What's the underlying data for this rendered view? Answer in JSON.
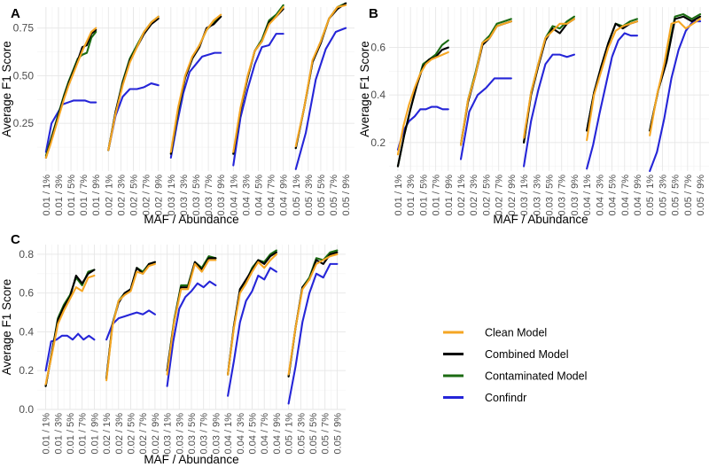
{
  "x_tick_labels": [
    "0.01 / 1%",
    "0.01 / 3%",
    "0.01 / 5%",
    "0.01 / 7%",
    "0.01 / 9%",
    "0.02 / 1%",
    "0.02 / 3%",
    "0.02 / 5%",
    "0.02 / 7%",
    "0.02 / 9%",
    "0.03 / 1%",
    "0.03 / 3%",
    "0.03 / 5%",
    "0.03 / 7%",
    "0.03 / 9%",
    "0.04 / 1%",
    "0.04 / 3%",
    "0.04 / 5%",
    "0.04 / 7%",
    "0.04 / 9%",
    "0.05 / 1%",
    "0.05 / 3%",
    "0.05 / 5%",
    "0.05 / 7%",
    "0.05 / 9%"
  ],
  "legend": [
    {
      "name": "Clean Model",
      "color": "#F5A623"
    },
    {
      "name": "Combined Model",
      "color": "#000000"
    },
    {
      "name": "Contaminated Model",
      "color": "#1B6B12"
    },
    {
      "name": "Confindr",
      "color": "#2525D8"
    }
  ],
  "chart_data": [
    {
      "panel": "A",
      "type": "line",
      "ylabel": "Average F1 Score",
      "xlabel": "MAF / Abundance",
      "ylim": [
        0.0,
        0.86
      ],
      "y_ticks": [
        0.25,
        0.5,
        0.75
      ],
      "y_tick_labels": [
        "0.25",
        "0.50",
        "0.75"
      ],
      "groups": 5,
      "series": [
        {
          "name": "Clean Model",
          "values": [
            [
              0.07,
              0.14,
              0.22,
              0.3,
              0.38,
              0.45,
              0.51,
              0.57,
              0.63,
              0.68,
              0.73,
              0.75
            ],
            [
              0.11,
              0.3,
              0.45,
              0.57,
              0.65,
              0.73,
              0.78,
              0.81
            ],
            [
              0.1,
              0.33,
              0.5,
              0.6,
              0.66,
              0.74,
              0.79,
              0.82
            ],
            [
              0.1,
              0.33,
              0.5,
              0.63,
              0.68,
              0.77,
              0.81,
              0.86
            ],
            [
              0.13,
              0.33,
              0.58,
              0.68,
              0.8,
              0.86,
              0.87
            ]
          ]
        },
        {
          "name": "Combined Model",
          "values": [
            [
              0.07,
              0.15,
              0.23,
              0.31,
              0.39,
              0.46,
              0.52,
              0.58,
              0.65,
              0.66,
              0.72,
              0.74
            ],
            [
              0.11,
              0.31,
              0.46,
              0.58,
              0.65,
              0.72,
              0.77,
              0.8
            ],
            [
              0.09,
              0.32,
              0.49,
              0.59,
              0.65,
              0.75,
              0.77,
              0.81
            ],
            [
              0.09,
              0.32,
              0.49,
              0.63,
              0.68,
              0.78,
              0.81,
              0.85
            ],
            [
              0.12,
              0.33,
              0.57,
              0.67,
              0.8,
              0.85,
              0.88
            ]
          ]
        },
        {
          "name": "Contaminated Model",
          "values": [
            [
              0.08,
              0.16,
              0.24,
              0.32,
              0.4,
              0.47,
              0.53,
              0.59,
              0.61,
              0.62,
              0.7,
              0.73
            ],
            [
              0.11,
              0.31,
              0.47,
              0.59,
              0.66,
              0.73,
              0.78,
              0.81
            ],
            [
              0.09,
              0.31,
              0.49,
              0.59,
              0.66,
              0.74,
              0.78,
              0.81
            ],
            [
              0.09,
              0.32,
              0.49,
              0.63,
              0.69,
              0.79,
              0.82,
              0.87
            ],
            [
              0.12,
              0.33,
              0.57,
              0.68,
              0.8,
              0.86,
              0.88
            ]
          ]
        },
        {
          "name": "Confindr",
          "values": [
            [
              0.1,
              0.25,
              0.3,
              0.35,
              0.36,
              0.37,
              0.37,
              0.37,
              0.36,
              0.36
            ],
            [
              0.11,
              0.29,
              0.39,
              0.43,
              0.43,
              0.44,
              0.46,
              0.45
            ],
            [
              0.07,
              0.25,
              0.41,
              0.52,
              0.56,
              0.6,
              0.61,
              0.62,
              0.62
            ],
            [
              0.03,
              0.28,
              0.43,
              0.56,
              0.65,
              0.66,
              0.72,
              0.72
            ],
            [
              0.01,
              0.2,
              0.48,
              0.64,
              0.73,
              0.75
            ]
          ]
        }
      ]
    },
    {
      "panel": "B",
      "type": "line",
      "ylabel": "Average F1 Score",
      "xlabel": "MAF / Abundance",
      "ylim": [
        0.08,
        0.77
      ],
      "y_ticks": [
        0.2,
        0.4,
        0.6
      ],
      "y_tick_labels": [
        "0.2",
        "0.4",
        "0.6"
      ],
      "groups": 5,
      "series": [
        {
          "name": "Clean Model",
          "values": [
            [
              0.15,
              0.27,
              0.36,
              0.43,
              0.49,
              0.53,
              0.55,
              0.56,
              0.57,
              0.58
            ],
            [
              0.19,
              0.38,
              0.48,
              0.62,
              0.64,
              0.69,
              0.7,
              0.71
            ],
            [
              0.22,
              0.41,
              0.53,
              0.64,
              0.67,
              0.7,
              0.7,
              0.72
            ],
            [
              0.21,
              0.4,
              0.5,
              0.6,
              0.67,
              0.69,
              0.7,
              0.71
            ],
            [
              0.23,
              0.4,
              0.53,
              0.7,
              0.71,
              0.68,
              0.7,
              0.72
            ]
          ]
        },
        {
          "name": "Combined Model",
          "values": [
            [
              0.1,
              0.23,
              0.34,
              0.44,
              0.52,
              0.55,
              0.56,
              0.59,
              0.6
            ],
            [
              0.19,
              0.37,
              0.48,
              0.61,
              0.64,
              0.69,
              0.7,
              0.71
            ],
            [
              0.2,
              0.4,
              0.52,
              0.63,
              0.68,
              0.66,
              0.7,
              0.72
            ],
            [
              0.25,
              0.41,
              0.52,
              0.62,
              0.7,
              0.68,
              0.7,
              0.71
            ],
            [
              0.25,
              0.42,
              0.54,
              0.72,
              0.73,
              0.71,
              0.73
            ]
          ]
        },
        {
          "name": "Contaminated Model",
          "values": [
            [
              0.1,
              0.23,
              0.34,
              0.44,
              0.53,
              0.55,
              0.57,
              0.61,
              0.63
            ],
            [
              0.19,
              0.38,
              0.49,
              0.62,
              0.65,
              0.7,
              0.71,
              0.72
            ],
            [
              0.2,
              0.41,
              0.53,
              0.64,
              0.69,
              0.68,
              0.71,
              0.73
            ],
            [
              0.25,
              0.41,
              0.52,
              0.62,
              0.7,
              0.69,
              0.71,
              0.72
            ],
            [
              0.25,
              0.42,
              0.55,
              0.73,
              0.74,
              0.72,
              0.74
            ]
          ]
        },
        {
          "name": "Confindr",
          "values": [
            [
              0.17,
              0.25,
              0.29,
              0.31,
              0.34,
              0.34,
              0.35,
              0.35,
              0.34,
              0.34
            ],
            [
              0.13,
              0.33,
              0.4,
              0.43,
              0.47,
              0.47,
              0.47
            ],
            [
              0.1,
              0.29,
              0.42,
              0.53,
              0.57,
              0.57,
              0.56,
              0.57
            ],
            [
              0.09,
              0.19,
              0.32,
              0.44,
              0.56,
              0.63,
              0.66,
              0.65,
              0.65
            ],
            [
              0.08,
              0.16,
              0.3,
              0.47,
              0.59,
              0.67,
              0.71,
              0.71
            ]
          ]
        }
      ]
    },
    {
      "panel": "C",
      "type": "line",
      "ylabel": "Average F1 Score",
      "xlabel": "MAF / Abundance",
      "ylim": [
        0.0,
        0.85
      ],
      "y_ticks": [
        0.0,
        0.2,
        0.4,
        0.6,
        0.8
      ],
      "y_tick_labels": [
        "0.0",
        "0.2",
        "0.4",
        "0.6",
        "0.8"
      ],
      "groups": 5,
      "series": [
        {
          "name": "Clean Model",
          "values": [
            [
              0.13,
              0.28,
              0.44,
              0.51,
              0.57,
              0.63,
              0.61,
              0.68,
              0.69
            ],
            [
              0.15,
              0.43,
              0.56,
              0.59,
              0.61,
              0.71,
              0.7,
              0.74,
              0.75
            ],
            [
              0.18,
              0.45,
              0.62,
              0.62,
              0.75,
              0.71,
              0.77,
              0.77
            ],
            [
              0.18,
              0.42,
              0.6,
              0.65,
              0.71,
              0.76,
              0.73,
              0.77,
              0.8
            ],
            [
              0.18,
              0.42,
              0.62,
              0.67,
              0.75,
              0.77,
              0.79,
              0.8
            ]
          ]
        },
        {
          "name": "Combined Model",
          "values": [
            [
              0.12,
              0.29,
              0.46,
              0.53,
              0.58,
              0.69,
              0.65,
              0.7,
              0.72
            ],
            [
              0.16,
              0.44,
              0.55,
              0.6,
              0.62,
              0.73,
              0.7,
              0.75,
              0.76
            ],
            [
              0.2,
              0.45,
              0.63,
              0.63,
              0.76,
              0.72,
              0.78,
              0.78
            ],
            [
              0.18,
              0.43,
              0.62,
              0.67,
              0.72,
              0.77,
              0.75,
              0.79,
              0.81
            ],
            [
              0.17,
              0.42,
              0.63,
              0.67,
              0.77,
              0.75,
              0.8,
              0.81
            ]
          ]
        },
        {
          "name": "Contaminated Model",
          "values": [
            [
              0.12,
              0.29,
              0.47,
              0.54,
              0.59,
              0.68,
              0.64,
              0.71,
              0.72
            ],
            [
              0.16,
              0.44,
              0.56,
              0.6,
              0.62,
              0.73,
              0.71,
              0.75,
              0.76
            ],
            [
              0.2,
              0.46,
              0.64,
              0.64,
              0.76,
              0.73,
              0.79,
              0.78
            ],
            [
              0.18,
              0.43,
              0.62,
              0.66,
              0.73,
              0.77,
              0.76,
              0.8,
              0.82
            ],
            [
              0.17,
              0.42,
              0.63,
              0.68,
              0.78,
              0.77,
              0.81,
              0.82
            ]
          ]
        },
        {
          "name": "Confindr",
          "values": [
            [
              0.2,
              0.35,
              0.36,
              0.38,
              0.38,
              0.36,
              0.39,
              0.36,
              0.38,
              0.36
            ],
            [
              0.36,
              0.44,
              0.47,
              0.48,
              0.49,
              0.5,
              0.49,
              0.51,
              0.49
            ],
            [
              0.12,
              0.35,
              0.52,
              0.58,
              0.61,
              0.65,
              0.63,
              0.66,
              0.64
            ],
            [
              0.07,
              0.25,
              0.45,
              0.56,
              0.61,
              0.69,
              0.67,
              0.73,
              0.71
            ],
            [
              0.03,
              0.22,
              0.45,
              0.6,
              0.7,
              0.68,
              0.75,
              0.75
            ]
          ]
        }
      ]
    }
  ]
}
